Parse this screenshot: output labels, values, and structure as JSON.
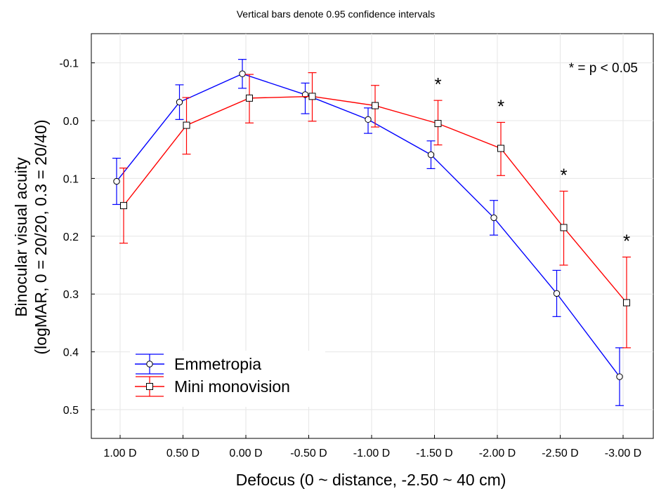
{
  "chart_data": {
    "type": "line",
    "title": "Vertical bars denote 0.95 confidence intervals",
    "xlabel": "Defocus (0 ~ distance, -2.50 ~ 40 cm)",
    "ylabel_line1": "Binocular visual acuity",
    "ylabel_line2": "(logMAR, 0 = 20/20, 0.3 = 20/40)",
    "annotation": "* = p < 0.05",
    "categories": [
      "1.00 D",
      "0.50 D",
      "0.00 D",
      "-0.50 D",
      "-1.00 D",
      "-1.50 D",
      "-2.00 D",
      "-2.50 D",
      "-3.00 D"
    ],
    "y_inverted": true,
    "ylim": [
      -0.15,
      0.55
    ],
    "yticks": [
      "-0.1",
      "0.0",
      "0.1",
      "0.2",
      "0.3",
      "0.4",
      "0.5"
    ],
    "grid": true,
    "legend_position": "bottom-left",
    "significance_marker": "*",
    "significant_categories": [
      "-1.50 D",
      "-2.00 D",
      "-2.50 D",
      "-3.00 D"
    ],
    "series": [
      {
        "name": "Emmetropia",
        "color": "#0000ff",
        "marker": "circle",
        "values": [
          0.105,
          -0.032,
          -0.081,
          -0.045,
          -0.002,
          0.059,
          0.168,
          0.299,
          0.443
        ],
        "ci_low": [
          0.065,
          -0.062,
          -0.106,
          -0.065,
          -0.022,
          0.035,
          0.138,
          0.259,
          0.393
        ],
        "ci_high": [
          0.145,
          -0.002,
          -0.056,
          -0.012,
          0.022,
          0.083,
          0.198,
          0.339,
          0.493
        ]
      },
      {
        "name": "Mini monovision",
        "color": "#ff0000",
        "marker": "square",
        "values": [
          0.147,
          0.008,
          -0.039,
          -0.042,
          -0.026,
          0.005,
          0.048,
          0.185,
          0.315
        ],
        "ci_low": [
          0.082,
          -0.04,
          -0.08,
          -0.083,
          -0.061,
          -0.035,
          0.003,
          0.122,
          0.236
        ],
        "ci_high": [
          0.212,
          0.058,
          0.004,
          0.001,
          0.011,
          0.042,
          0.095,
          0.25,
          0.393
        ]
      }
    ]
  }
}
